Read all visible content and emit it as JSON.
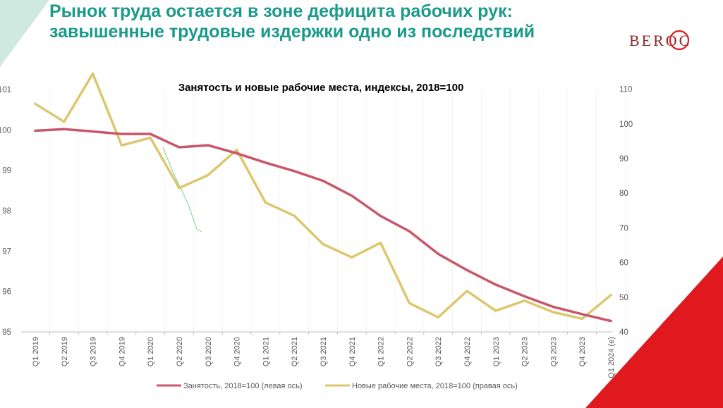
{
  "slide": {
    "title_line1": "Рынок труда остается в зоне дефицита рабочих рук:",
    "title_line2": "завышенные трудовые издержки одно из последствий",
    "logo": "BEROC"
  },
  "colors": {
    "title": "#1a9a8a",
    "employment": "#c9576b",
    "vacancies": "#ddc76e",
    "accent_red": "#e0191f",
    "accent_mint": "#cfe9e1"
  },
  "chart_data": {
    "type": "line",
    "title": "Занятость и новые рабочие места, индексы, 2018=100",
    "categories": [
      "Q1 2019",
      "Q2 2019",
      "Q3 2019",
      "Q4 2019",
      "Q1 2020",
      "Q2 2020",
      "Q3 2020",
      "Q4 2020",
      "Q1 2021",
      "Q2 2021",
      "Q3 2021",
      "Q4 2021",
      "Q1 2022",
      "Q2 2022",
      "Q3 2022",
      "Q4 2022",
      "Q1 2023",
      "Q2 2023",
      "Q3 2023",
      "Q4 2023",
      "Q1 2024 (e)"
    ],
    "y_left": {
      "min": 95,
      "max": 101,
      "ticks": [
        95,
        96,
        97,
        98,
        99,
        100,
        101
      ],
      "tick_labels": [
        "95",
        "96",
        "97",
        "98",
        "99",
        "100",
        "101"
      ]
    },
    "y_right": {
      "min": 40,
      "max": 115,
      "ticks": [
        40,
        50,
        60,
        70,
        80,
        90,
        100,
        110
      ],
      "tick_labels": [
        "40",
        "50",
        "60",
        "70",
        "80",
        "90",
        "100",
        "110"
      ]
    },
    "series": [
      {
        "name": "Занятость, 2018=100 (левая ось)",
        "axis": "left",
        "values": [
          99.98,
          100.02,
          99.96,
          99.9,
          99.9,
          99.57,
          99.62,
          99.42,
          99.19,
          98.98,
          98.74,
          98.37,
          97.87,
          97.49,
          96.93,
          96.53,
          96.17,
          95.88,
          95.62,
          95.44,
          95.27
        ]
      },
      {
        "name": "Новые рабочие места, 2018=100 (правая ось)",
        "axis": "right",
        "values": [
          105.8,
          100.6,
          114.5,
          93.8,
          96,
          81.5,
          85.2,
          92.5,
          77.3,
          73.5,
          65.3,
          61.5,
          65.7,
          48.3,
          44.2,
          51.8,
          46.1,
          49,
          45.7,
          43.8,
          50.6
        ]
      }
    ],
    "grid": "vertical"
  }
}
